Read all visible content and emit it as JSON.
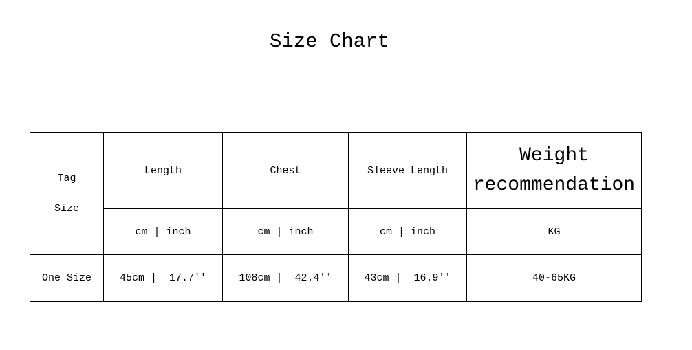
{
  "title": "Size Chart",
  "table": {
    "tag_header": [
      "Tag",
      "Size"
    ],
    "headers": [
      "Length",
      "Chest",
      "Sleeve Length",
      "Weight recommendation"
    ],
    "weight_header_lines": [
      "Weight",
      "recommendation"
    ],
    "units": [
      "cm | inch",
      "cm | inch",
      "cm | inch",
      "KG"
    ],
    "rows": [
      {
        "size": "One Size",
        "values": [
          "45cm |  17.7''",
          "108cm |  42.4''",
          "43cm |  16.9''",
          "40-65KG"
        ]
      }
    ]
  }
}
